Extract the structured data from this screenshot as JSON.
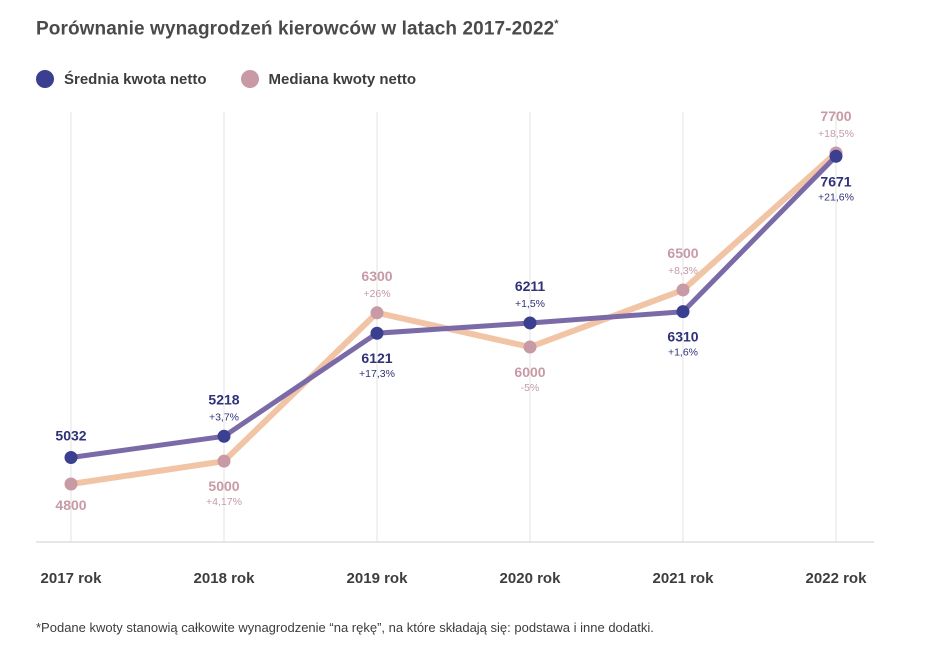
{
  "title": "Porównanie wynagrodzeń kierowców w latach 2017-2022",
  "title_mark": "*",
  "footnote": "*Podane kwoty stanowią całkowite wynagrodzenie “na rękę”, na które składają się: podstawa i inne dodatki.",
  "colors": {
    "mean_line": "#7b6aa8",
    "mean_dot": "#3b3f8f",
    "median_line": "#f2c4a6",
    "median_dot": "#c79aa6",
    "mean_text": "#2f3278",
    "median_text": "#c79aa6",
    "grid": "#e3e3e3",
    "axis": "#cfcfcf"
  },
  "chart_data": {
    "type": "line",
    "categories": [
      "2017 rok",
      "2018 rok",
      "2019 rok",
      "2020 rok",
      "2021 rok",
      "2022 rok"
    ],
    "ylim": [
      4300,
      7800
    ],
    "grid": "vertical",
    "legend_position": "top-left",
    "series": [
      {
        "name": "Średnia kwota netto",
        "values": [
          5032,
          5218,
          6121,
          6211,
          6310,
          7671
        ],
        "value_labels": [
          "5032",
          "5218",
          "6121",
          "6211",
          "6310",
          "7671"
        ],
        "change_labels": [
          "",
          "+3,7%",
          "+17,3%",
          "+1,5%",
          "+1,6%",
          "+21,6%"
        ]
      },
      {
        "name": "Mediana kwoty netto",
        "values": [
          4800,
          5000,
          6300,
          6000,
          6500,
          7700
        ],
        "value_labels": [
          "4800",
          "5000",
          "6300",
          "6000",
          "6500",
          "7700"
        ],
        "change_labels": [
          "",
          "+4,17%",
          "+26%",
          "-5%",
          "+8,3%",
          "+18,5%"
        ]
      }
    ]
  }
}
